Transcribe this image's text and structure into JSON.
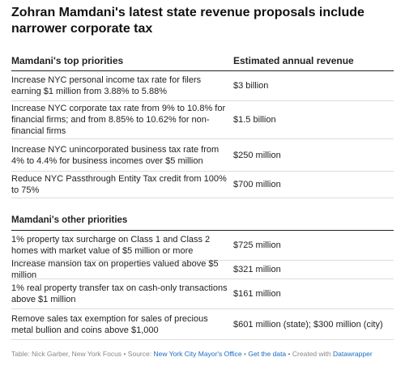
{
  "title": "Zohran Mamdani's latest state revenue proposals include narrower corporate tax",
  "table": {
    "headers": [
      "Mamdani's top priorities",
      "Estimated annual revenue"
    ],
    "sections": [
      {
        "rows": [
          [
            "Increase NYC personal income tax rate for filers earning $1 million from 3.88% to 5.88%",
            "$3 billion"
          ],
          [
            "Increase NYC corporate tax rate from 9% to 10.8% for financial firms; and from 8.85% to 10.62% for non-financial firms",
            "$1.5 billion"
          ],
          [
            "Increase NYC unincorporated business tax rate from 4% to 4.4% for business incomes over $5 million",
            "$250 million"
          ],
          [
            "Reduce NYC Passthrough Entity Tax credit from 100% to 75%",
            "$700 million"
          ]
        ]
      },
      {
        "heading": "Mamdani's other priorities",
        "rows": [
          [
            "1% property tax surcharge on Class 1 and Class 2 homes with market value of $5 million or more",
            "$725 million"
          ],
          [
            "Increase mansion tax on properties valued above $5 million",
            "$321 million"
          ],
          [
            "1% real property transfer tax on cash-only transactions above $1 million",
            "$161 million"
          ],
          [
            "Remove sales tax exemption for sales of precious metal bullion and coins above $1,000",
            "$601 million (state); $300 million (city)"
          ]
        ]
      }
    ]
  },
  "footer": {
    "byline": "Table: Nick Garber, New York Focus",
    "separator": "•",
    "source_label": "Source:",
    "source": "New York City Mayor's Office",
    "get_data": "Get the data",
    "created_label": "Created with",
    "created": "Datawrapper"
  }
}
